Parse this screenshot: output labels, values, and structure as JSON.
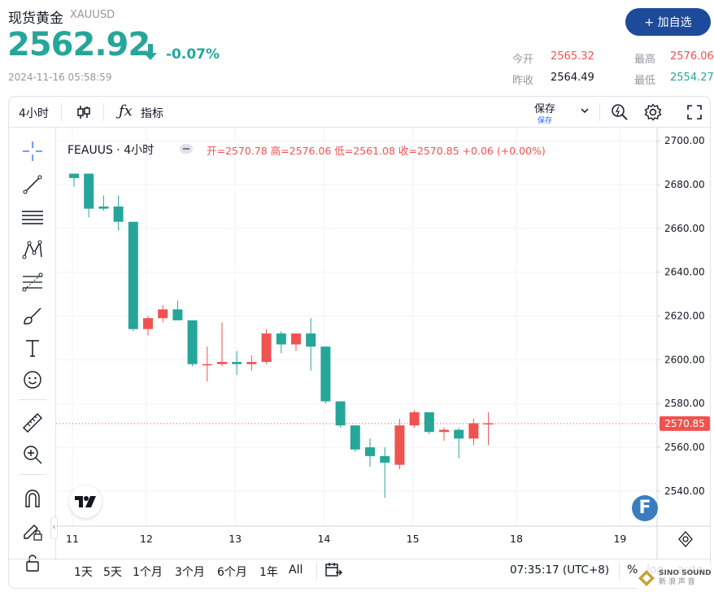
{
  "header": {
    "title": "现货黄金",
    "symbol": "XAUUSD",
    "price": "2562.92",
    "change_pct": "-0.07%",
    "timestamp": "2024-11-16 05:58:59",
    "add_button": "+ 加自选",
    "stats": {
      "open_label": "今开",
      "open_value": "2565.32",
      "high_label": "最高",
      "high_value": "2576.06",
      "prev_label": "昨收",
      "prev_value": "2564.49",
      "low_label": "最低",
      "low_value": "2554.27"
    },
    "colors": {
      "down": "#26a69a",
      "up": "#ef5350",
      "accent": "#1e4a9a"
    }
  },
  "toolbar": {
    "interval": "4小时",
    "indicators": "指标",
    "save": "保存",
    "save_sub": "保存"
  },
  "legend": {
    "symbol": "FEAUUS · 4小时",
    "ohlc": "开=2570.78 高=2576.06 低=2561.08 收=2570.85 +0.06 (+0.00%)"
  },
  "left_tools": [
    "crosshair-icon",
    "trend-line-icon",
    "horizontal-lines-icon",
    "pattern-icon",
    "fib-icon",
    "brush-icon",
    "text-icon",
    "emoji-icon",
    "ruler-icon",
    "zoom-in-icon",
    "magnet-icon",
    "lock-draw-icon",
    "lock-icon"
  ],
  "bottom_bar": {
    "ranges": [
      "1天",
      "5天",
      "1个月",
      "3个月",
      "6个月",
      "1年",
      "All"
    ],
    "time": "07:35:17 (UTC+8)",
    "percent": "%",
    "log": "log",
    "auto": "auto"
  },
  "chart_data": {
    "type": "candlestick",
    "ylim": [
      2524,
      2706
    ],
    "y_ticks": [
      "2700.00",
      "2680.00",
      "2660.00",
      "2640.00",
      "2620.00",
      "2600.00",
      "2580.00",
      "2560.00",
      "2540.00"
    ],
    "x_ticks": [
      "11",
      "12",
      "13",
      "14",
      "15",
      "18",
      "19"
    ],
    "last_price": "2570.85",
    "candles": [
      {
        "o": 2685,
        "h": 2685,
        "l": 2679,
        "c": 2683
      },
      {
        "o": 2685,
        "h": 2685,
        "l": 2665,
        "c": 2669
      },
      {
        "o": 2670,
        "h": 2675,
        "l": 2668,
        "c": 2669
      },
      {
        "o": 2670,
        "h": 2675,
        "l": 2659,
        "c": 2663
      },
      {
        "o": 2663,
        "h": 2663,
        "l": 2613,
        "c": 2614
      },
      {
        "o": 2614,
        "h": 2620,
        "l": 2611,
        "c": 2619
      },
      {
        "o": 2619,
        "h": 2625,
        "l": 2617,
        "c": 2623
      },
      {
        "o": 2623,
        "h": 2627,
        "l": 2618,
        "c": 2618
      },
      {
        "o": 2618,
        "h": 2618,
        "l": 2597,
        "c": 2598
      },
      {
        "o": 2598,
        "h": 2606,
        "l": 2590,
        "c": 2598
      },
      {
        "o": 2598,
        "h": 2617,
        "l": 2597,
        "c": 2599
      },
      {
        "o": 2599,
        "h": 2604,
        "l": 2593,
        "c": 2598
      },
      {
        "o": 2598,
        "h": 2602,
        "l": 2595,
        "c": 2599
      },
      {
        "o": 2599,
        "h": 2614,
        "l": 2598,
        "c": 2612
      },
      {
        "o": 2612,
        "h": 2613,
        "l": 2603,
        "c": 2607
      },
      {
        "o": 2607,
        "h": 2612,
        "l": 2604,
        "c": 2612
      },
      {
        "o": 2612,
        "h": 2619,
        "l": 2595,
        "c": 2606
      },
      {
        "o": 2606,
        "h": 2606,
        "l": 2580,
        "c": 2581
      },
      {
        "o": 2581,
        "h": 2581,
        "l": 2569,
        "c": 2570
      },
      {
        "o": 2570,
        "h": 2570,
        "l": 2558,
        "c": 2559
      },
      {
        "o": 2560,
        "h": 2564,
        "l": 2551,
        "c": 2556
      },
      {
        "o": 2556,
        "h": 2560,
        "l": 2537,
        "c": 2553
      },
      {
        "o": 2552,
        "h": 2573,
        "l": 2550,
        "c": 2570
      },
      {
        "o": 2570,
        "h": 2577,
        "l": 2569,
        "c": 2576
      },
      {
        "o": 2576,
        "h": 2576,
        "l": 2566,
        "c": 2567
      },
      {
        "o": 2567,
        "h": 2569,
        "l": 2563,
        "c": 2568
      },
      {
        "o": 2568,
        "h": 2569,
        "l": 2555,
        "c": 2564
      },
      {
        "o": 2564,
        "h": 2573,
        "l": 2561,
        "c": 2571
      },
      {
        "o": 2571,
        "h": 2576,
        "l": 2561,
        "c": 2571
      }
    ]
  }
}
